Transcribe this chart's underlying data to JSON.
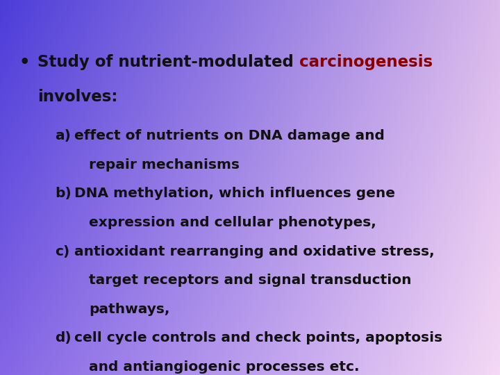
{
  "bullet_text_part1": "Study of nutrient-modulated ",
  "bullet_text_part2": "carcinogenesis",
  "title_line2": "involves:",
  "black": "#111111",
  "red": "#8b0000",
  "items": [
    {
      "label": "a)",
      "lines": [
        "effect of nutrients on DNA damage and",
        "repair mechanisms"
      ]
    },
    {
      "label": "b)",
      "lines": [
        "DNA methylation, which influences gene",
        "expression and cellular phenotypes,"
      ]
    },
    {
      "label": "c)",
      "lines": [
        "antioxidant rearranging and oxidative stress,",
        "target receptors and signal transduction",
        "pathways,"
      ]
    },
    {
      "label": "d)",
      "lines": [
        "cell cycle controls and check points, apoptosis",
        "and antiangiogenic processes etc."
      ]
    }
  ],
  "tl_color": [
    0.3,
    0.24,
    0.85
  ],
  "tr_color": [
    0.85,
    0.72,
    0.92
  ],
  "bl_color": [
    0.52,
    0.4,
    0.9
  ],
  "br_color": [
    0.96,
    0.85,
    0.96
  ],
  "title_fontsize": 16.5,
  "body_fontsize": 14.5,
  "figsize": [
    7.2,
    5.4
  ],
  "dpi": 100
}
